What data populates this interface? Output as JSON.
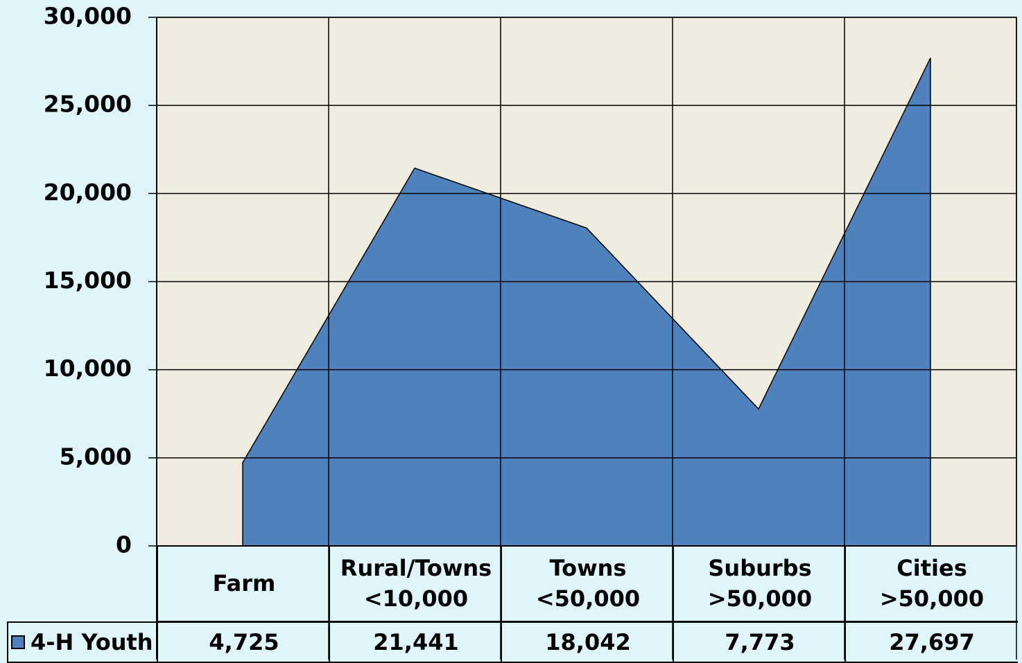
{
  "chart_data": {
    "type": "area",
    "categories": [
      "Farm",
      "Rural/Towns <10,000",
      "Towns <50,000",
      "Suburbs >50,000",
      "Cities >50,000"
    ],
    "series": [
      {
        "name": "4-H Youth",
        "color": "#4f81bd",
        "values": [
          4725,
          21441,
          18042,
          7773,
          27697
        ],
        "value_labels": [
          "4,725",
          "21,441",
          "18,042",
          "7,773",
          "27,697"
        ]
      }
    ],
    "ylim": [
      0,
      30000
    ],
    "yticks": [
      0,
      {
        "value": 5000,
        "label": "5,000"
      },
      {
        "value": 10000,
        "label": "10,000"
      },
      {
        "value": 15000,
        "label": "15,000"
      },
      {
        "value": 20000,
        "label": "20,000"
      },
      {
        "value": 25000,
        "label": "25,000"
      },
      {
        "value": 30000,
        "label": "30,000"
      }
    ],
    "grid": true
  }
}
